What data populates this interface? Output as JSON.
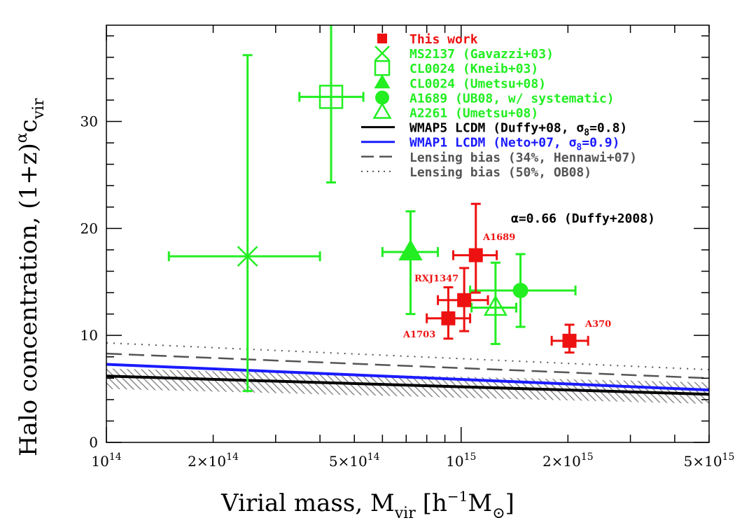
{
  "chart_data": {
    "type": "scatter",
    "xscale": "log",
    "xlim": [
      100000000000000.0,
      5000000000000000.0
    ],
    "ylim": [
      0,
      39
    ],
    "xlabel": "Virial mass, M",
    "xlabel_sub": "vir",
    "xlabel_unit_open": "[h",
    "xlabel_unit_sup": "−1",
    "xlabel_unit_rest": "M",
    "xlabel_unit_sub": "⊙",
    "xlabel_unit_close": "]",
    "ylabel": "Halo concentration, (1+z)",
    "ylabel_sup": "α",
    "ylabel_rest": "c",
    "ylabel_sub": "vir",
    "xticks": [
      {
        "value": 100000000000000.0,
        "label": "10",
        "sup": "14"
      },
      {
        "value": 200000000000000.0,
        "label": "2×10",
        "sup": "14"
      },
      {
        "value": 500000000000000.0,
        "label": "5×10",
        "sup": "14"
      },
      {
        "value": 1000000000000000.0,
        "label": "10",
        "sup": "15"
      },
      {
        "value": 2000000000000000.0,
        "label": "2×10",
        "sup": "15"
      },
      {
        "value": 5000000000000000.0,
        "label": "5×10",
        "sup": "15"
      }
    ],
    "yticks": [
      0,
      10,
      20,
      30
    ],
    "legend_position": "top-right",
    "legend": [
      {
        "label": "This work",
        "color": "#ee1111",
        "marker": "filled-square"
      },
      {
        "label": "MS2137 (Gavazzi+03)",
        "color": "#22ee22",
        "marker": "cross"
      },
      {
        "label": "CL0024 (Kneib+03)",
        "color": "#22ee22",
        "marker": "open-square"
      },
      {
        "label": "CL0024 (Umetsu+08)",
        "color": "#22ee22",
        "marker": "filled-triangle"
      },
      {
        "label": "A1689 (UB08, w/ systematic)",
        "color": "#22ee22",
        "marker": "filled-circle"
      },
      {
        "label": "A2261 (Umetsu+08)",
        "color": "#22ee22",
        "marker": "open-triangle"
      },
      {
        "label": "WMAP5 LCDM (Duffy+08, σ8=0.8)",
        "color": "#000000",
        "marker": "solid-line"
      },
      {
        "label": "WMAP1 LCDM (Neto+07, σ8=0.9)",
        "color": "#1a1aff",
        "marker": "solid-line"
      },
      {
        "label": "Lensing bias (34%, Hennawi+07)",
        "color": "#555555",
        "marker": "dashed-line"
      },
      {
        "label": "Lensing bias (50%, OB08)",
        "color": "#555555",
        "marker": "dotted-line"
      }
    ],
    "annotation": "α=0.66 (Duffy+2008)",
    "series": [
      {
        "name": "This work",
        "color": "#ee1111",
        "marker": "filled-square",
        "points": [
          {
            "label": "A1703",
            "x": 920000000000000.0,
            "y": 11.6,
            "xerr": [
              800000000000000.0,
              1060000000000000.0
            ],
            "yerr": [
              9.7,
              14.5
            ]
          },
          {
            "label": "RXJ1347",
            "x": 1020000000000000.0,
            "y": 13.3,
            "xerr": [
              860000000000000.0,
              1190000000000000.0
            ],
            "yerr": [
              10.4,
              16.3
            ]
          },
          {
            "label": "A1689",
            "x": 1100000000000000.0,
            "y": 17.5,
            "xerr": [
              950000000000000.0,
              1260000000000000.0
            ],
            "yerr": [
              14.0,
              22.3
            ]
          },
          {
            "label": "A370",
            "x": 2020000000000000.0,
            "y": 9.5,
            "xerr": [
              1800000000000000.0,
              2280000000000000.0
            ],
            "yerr": [
              8.4,
              11.0
            ]
          }
        ]
      },
      {
        "name": "MS2137 (Gavazzi+03)",
        "color": "#22ee22",
        "marker": "cross",
        "points": [
          {
            "x": 250000000000000.0,
            "y": 17.4,
            "xerr": [
              150000000000000.0,
              400000000000000.0
            ],
            "yerr": [
              4.8,
              36.2
            ]
          }
        ]
      },
      {
        "name": "CL0024 (Kneib+03)",
        "color": "#22ee22",
        "marker": "open-square",
        "points": [
          {
            "x": 430000000000000.0,
            "y": 32.3,
            "xerr": [
              350000000000000.0,
              530000000000000.0
            ],
            "yerr": [
              24.3,
              41
            ]
          }
        ]
      },
      {
        "name": "CL0024 (Umetsu+08)",
        "color": "#22ee22",
        "marker": "filled-triangle",
        "points": [
          {
            "x": 720000000000000.0,
            "y": 17.8,
            "xerr": [
              600000000000000.0,
              860000000000000.0
            ],
            "yerr": [
              12.0,
              21.6
            ]
          }
        ]
      },
      {
        "name": "A1689 (UB08, w/ systematic)",
        "color": "#22ee22",
        "marker": "filled-circle",
        "points": [
          {
            "x": 1470000000000000.0,
            "y": 14.2,
            "xerr": [
              1060000000000000.0,
              2100000000000000.0
            ],
            "yerr": [
              10.8,
              17.6
            ]
          }
        ]
      },
      {
        "name": "A2261 (Umetsu+08)",
        "color": "#22ee22",
        "marker": "open-triangle",
        "points": [
          {
            "x": 1250000000000000.0,
            "y": 12.6,
            "xerr": [
              1070000000000000.0,
              1430000000000000.0
            ],
            "yerr": [
              9.2,
              16.8
            ]
          }
        ]
      }
    ],
    "lines": [
      {
        "name": "WMAP5 LCDM (Duffy+08, σ8=0.8)",
        "color": "#000000",
        "style": "solid",
        "x": [
          100000000000000.0,
          5000000000000000.0
        ],
        "y": [
          6.2,
          4.5
        ]
      },
      {
        "name": "WMAP1 LCDM (Neto+07, σ8=0.9)",
        "color": "#1a1aff",
        "style": "solid",
        "x": [
          100000000000000.0,
          5000000000000000.0
        ],
        "y": [
          7.3,
          4.9
        ]
      },
      {
        "name": "Lensing bias (34%, Hennawi+07)",
        "color": "#555555",
        "style": "dashed",
        "x": [
          100000000000000.0,
          5000000000000000.0
        ],
        "y": [
          8.3,
          6.0
        ]
      },
      {
        "name": "Lensing bias (50%, OB08)",
        "color": "#555555",
        "style": "dotted",
        "x": [
          100000000000000.0,
          5000000000000000.0
        ],
        "y": [
          9.3,
          6.8
        ]
      }
    ],
    "shaded_band": {
      "x": [
        100000000000000.0,
        5000000000000000.0
      ],
      "y_low": [
        5.0,
        3.6
      ],
      "y_high": [
        6.9,
        5.6
      ],
      "color": "#999999"
    }
  }
}
